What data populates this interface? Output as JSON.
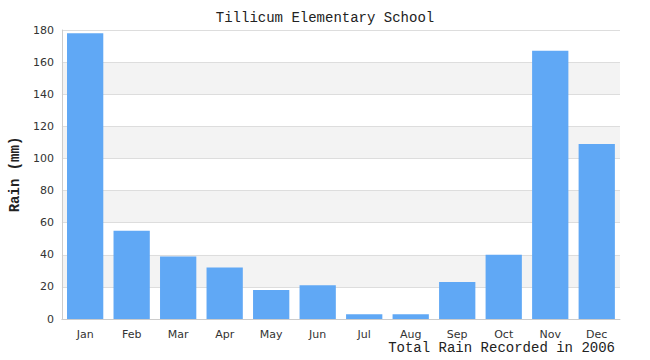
{
  "chart_data": {
    "type": "bar",
    "title": "Tillicum Elementary School",
    "x_label": "Total Rain Recorded in 2006",
    "y_label": "Rain (mm)",
    "categories": [
      "Jan",
      "Feb",
      "Mar",
      "Apr",
      "May",
      "Jun",
      "Jul",
      "Aug",
      "Sep",
      "Oct",
      "Nov",
      "Dec"
    ],
    "values": [
      178,
      55,
      39,
      32,
      18,
      21,
      3,
      3,
      23,
      40,
      167,
      109
    ],
    "color": "#60a8f5",
    "ylim": [
      0,
      180
    ],
    "yticks": [
      0,
      20,
      40,
      60,
      80,
      100,
      120,
      140,
      160,
      180
    ],
    "grid": true
  }
}
